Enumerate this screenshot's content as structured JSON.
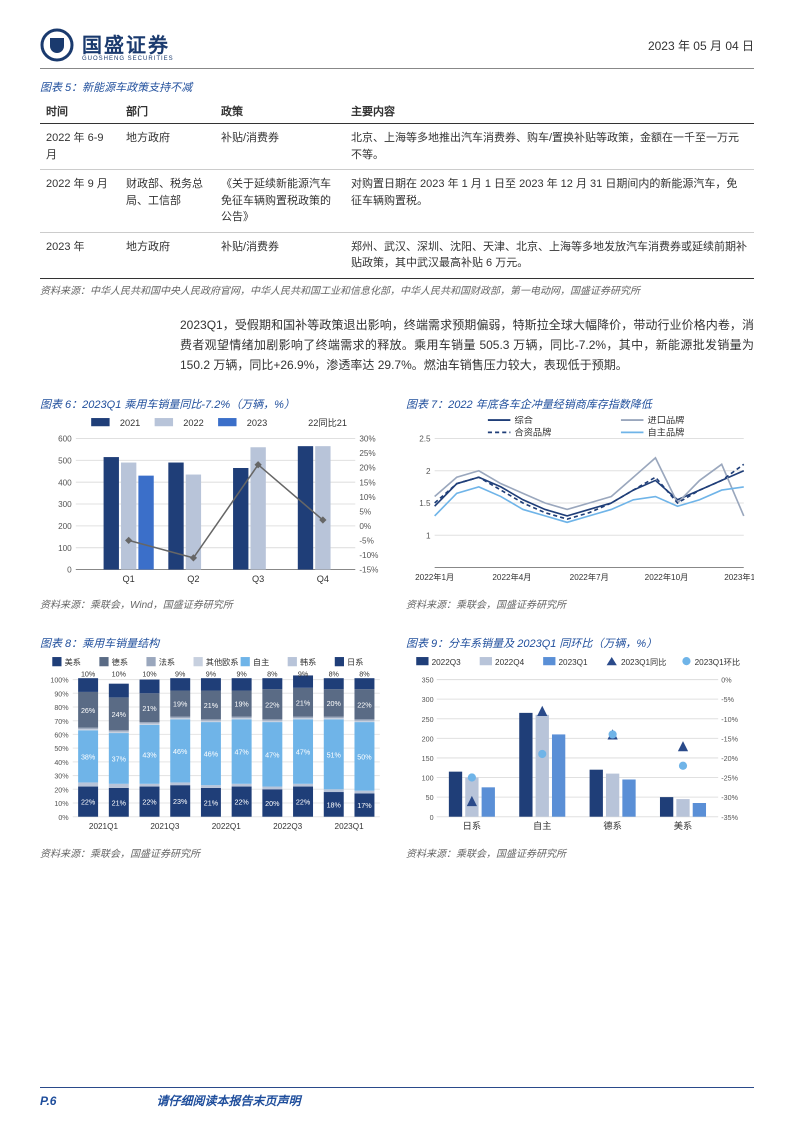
{
  "header": {
    "company": "国盛证券",
    "company_en": "GUOSHENG SECURITIES",
    "date": "2023 年 05 月 04 日"
  },
  "fig5": {
    "title": "图表 5：新能源车政策支持不减",
    "columns": [
      "时间",
      "部门",
      "政策",
      "主要内容"
    ],
    "rows": [
      [
        "2022 年 6-9 月",
        "地方政府",
        "补贴/消费券",
        "北京、上海等多地推出汽车消费券、购车/置换补贴等政策，金额在一千至一万元不等。"
      ],
      [
        "2022 年 9 月",
        "财政部、税务总局、工信部",
        "《关于延续新能源汽车免征车辆购置税政策的公告》",
        "对购置日期在 2023 年 1 月 1 日至 2023 年 12 月 31 日期间内的新能源汽车，免征车辆购置税。"
      ],
      [
        "2023 年",
        "地方政府",
        "补贴/消费券",
        "郑州、武汉、深圳、沈阳、天津、北京、上海等多地发放汽车消费券或延续前期补贴政策，其中武汉最高补贴 6 万元。"
      ]
    ],
    "source": "资料来源：中华人民共和国中央人民政府官网，中华人民共和国工业和信息化部，中华人民共和国财政部，第一电动网，国盛证券研究所"
  },
  "para": "2023Q1，受假期和国补等政策退出影响，终端需求预期偏弱，特斯拉全球大幅降价，带动行业价格内卷，消费者观望情绪加剧影响了终端需求的释放。乘用车销量 505.3 万辆，同比-7.2%，其中，新能源批发销量为 150.2 万辆，同比+26.9%，渗透率达 29.7%。燃油车销售压力较大，表现低于预期。",
  "fig6": {
    "title": "图表 6：2023Q1 乘用车销量同比-7.2%（万辆，%）",
    "legend": [
      "2021",
      "2022",
      "2023",
      "22同比21"
    ],
    "categories": [
      "Q1",
      "Q2",
      "Q3",
      "Q4"
    ],
    "bar_2021": [
      515,
      490,
      465,
      565
    ],
    "bar_2022": [
      490,
      435,
      560,
      565
    ],
    "bar_2023": [
      430,
      null,
      null,
      null
    ],
    "line_22v21": [
      -5,
      -11,
      21,
      2
    ],
    "ylim_left": [
      0,
      600
    ],
    "ytick_left": [
      0,
      100,
      200,
      300,
      400,
      500,
      600
    ],
    "ylim_right": [
      -15,
      30
    ],
    "ytick_right": [
      -15,
      -10,
      -5,
      0,
      5,
      10,
      15,
      20,
      25,
      30
    ],
    "colors": {
      "2021": "#1f3e78",
      "2022": "#b8c4d9",
      "2023": "#3b6fc9",
      "line": "#666666",
      "grid": "#e0e0e0",
      "axis": "#888"
    },
    "source": "资料来源：乘联会，Wind，国盛证券研究所"
  },
  "fig7": {
    "title": "图表 7：2022 年底各车企冲量经销商库存指数降低",
    "legend": [
      "综合",
      "进口品牌",
      "合资品牌",
      "自主品牌"
    ],
    "x_labels": [
      "2022年1月",
      "2022年4月",
      "2022年7月",
      "2022年10月",
      "2023年1月"
    ],
    "ylim": [
      0.5,
      2.5
    ],
    "yticks": [
      1,
      1.5,
      2,
      2.5
    ],
    "series": {
      "综合": [
        1.45,
        1.8,
        1.9,
        1.75,
        1.55,
        1.4,
        1.3,
        1.4,
        1.5,
        1.7,
        1.85,
        1.55,
        1.7,
        1.85,
        2.0
      ],
      "进口": [
        1.6,
        1.9,
        2.0,
        1.8,
        1.65,
        1.5,
        1.4,
        1.5,
        1.6,
        1.9,
        2.2,
        1.5,
        1.85,
        2.1,
        1.3
      ],
      "合资": [
        1.5,
        1.8,
        1.9,
        1.7,
        1.5,
        1.35,
        1.25,
        1.35,
        1.5,
        1.7,
        1.9,
        1.5,
        1.7,
        1.85,
        2.1
      ],
      "自主": [
        1.3,
        1.65,
        1.75,
        1.6,
        1.4,
        1.3,
        1.2,
        1.3,
        1.4,
        1.55,
        1.6,
        1.45,
        1.55,
        1.7,
        1.75
      ]
    },
    "colors": {
      "综合": "#1f3e78",
      "进口": "#9aa7bd",
      "合资": "#1f3e78",
      "自主": "#6fb4e8",
      "grid": "#e0e0e0"
    },
    "dash": {
      "综合": "",
      "进口": "",
      "合资": "4 3",
      "自主": ""
    },
    "source": "资料来源：乘联会，国盛证券研究所"
  },
  "fig8": {
    "title": "图表 8：乘用车销量结构",
    "legend": [
      "美系",
      "德系",
      "法系",
      "其他欧系",
      "自主",
      "韩系",
      "日系"
    ],
    "categories": [
      "2021Q1",
      "2021Q3",
      "2022Q1",
      "2022Q3",
      "2023Q1"
    ],
    "stacks_labels_top": [
      "10%",
      "10%",
      "10%",
      "9%",
      "9%",
      "9%",
      "8%",
      "9%",
      "8%",
      "8%"
    ],
    "stacks": {
      "日系": [
        22,
        21,
        22,
        23,
        21,
        22,
        20,
        22,
        18,
        17
      ],
      "韩系": [
        3,
        3,
        2,
        2,
        2,
        2,
        2,
        2,
        2,
        2
      ],
      "自主": [
        38,
        37,
        43,
        46,
        46,
        47,
        47,
        47,
        51,
        50
      ],
      "其他欧系": [
        1,
        1,
        1,
        1,
        1,
        1,
        1,
        1,
        1,
        1
      ],
      "法系": [
        1,
        1,
        1,
        1,
        1,
        1,
        1,
        1,
        1,
        1
      ],
      "德系": [
        26,
        24,
        21,
        19,
        21,
        19,
        22,
        21,
        20,
        22
      ],
      "美系": [
        10,
        10,
        10,
        9,
        9,
        9,
        8,
        9,
        8,
        8
      ]
    },
    "colors": {
      "美系": "#1f3e78",
      "德系": "#5a6b85",
      "法系": "#9aa7bd",
      "其他欧系": "#c7d0df",
      "自主": "#6fb4e8",
      "韩系": "#b8c4d9",
      "日系": "#1f3e78"
    },
    "ylim": [
      0,
      100
    ],
    "yticks": [
      0,
      10,
      20,
      30,
      40,
      50,
      60,
      70,
      80,
      90,
      100
    ],
    "source": "资料来源：乘联会，国盛证券研究所"
  },
  "fig9": {
    "title": "图表 9：分车系销量及 2023Q1 同环比（万辆，%）",
    "legend": [
      "2022Q3",
      "2022Q4",
      "2023Q1",
      "2023Q1同比",
      "2023Q1环比"
    ],
    "categories": [
      "日系",
      "自主",
      "德系",
      "美系"
    ],
    "bars": {
      "2022Q3": [
        115,
        265,
        120,
        50
      ],
      "2022Q4": [
        100,
        260,
        110,
        45
      ],
      "2023Q1": [
        75,
        210,
        95,
        35
      ]
    },
    "tri": [
      -31,
      -8,
      -14,
      -17
    ],
    "circle": [
      -25,
      -19,
      -14,
      -22
    ],
    "ylim_left": [
      0,
      350
    ],
    "ytick_left": [
      0,
      50,
      100,
      150,
      200,
      250,
      300,
      350
    ],
    "ylim_right": [
      -35,
      0
    ],
    "ytick_right": [
      -35,
      -30,
      -25,
      -20,
      -15,
      -10,
      -5,
      0
    ],
    "colors": {
      "2022Q3": "#1f3e78",
      "2022Q4": "#b8c4d9",
      "2023Q1": "#5a8fd6",
      "tri": "#2a4a8a",
      "circle": "#6fb4e8",
      "grid": "#e0e0e0"
    },
    "source": "资料来源：乘联会，国盛证券研究所"
  },
  "footer": {
    "page": "P.6",
    "note": "请仔细阅读本报告末页声明"
  }
}
